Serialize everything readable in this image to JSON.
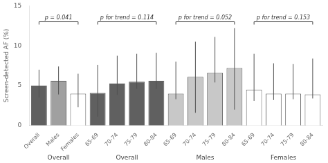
{
  "chart_data": {
    "type": "bar",
    "categories": [
      "Overall",
      "Males",
      "Females",
      "65-69",
      "70-74",
      "75-79",
      "80-84",
      "65-69",
      "70-74",
      "75-79",
      "80-84",
      "65-69",
      "70-74",
      "75-79",
      "80-84"
    ],
    "values": [
      5.0,
      5.6,
      4.0,
      4.1,
      5.25,
      5.5,
      5.6,
      4.0,
      6.1,
      6.6,
      7.2,
      4.5,
      4.0,
      4.0,
      3.9
    ],
    "errors_low": [
      1.5,
      1.7,
      1.7,
      3.0,
      1.4,
      0.9,
      1.0,
      0.7,
      4.5,
      1.2,
      5.2,
      1.4,
      0.8,
      0.7,
      0.5
    ],
    "errors_high": [
      2.0,
      1.8,
      2.5,
      3.5,
      3.5,
      3.5,
      3.5,
      4.0,
      4.4,
      4.5,
      5.0,
      4.5,
      3.8,
      3.7,
      4.5
    ],
    "colors": [
      "#606060",
      "#a0a0a0",
      "#ffffff",
      "#606060",
      "#606060",
      "#606060",
      "#606060",
      "#c8c8c8",
      "#c8c8c8",
      "#c8c8c8",
      "#c8c8c8",
      "#ffffff",
      "#ffffff",
      "#ffffff",
      "#ffffff"
    ],
    "groups": [
      {
        "label": "Overall",
        "range": [
          0,
          2
        ]
      },
      {
        "label": "Overall",
        "range": [
          3,
          6
        ]
      },
      {
        "label": "Males",
        "range": [
          7,
          10
        ]
      },
      {
        "label": "Females",
        "range": [
          11,
          14
        ]
      }
    ],
    "ylabel": "Screen-detected AF (%)",
    "ylim": [
      0,
      15
    ],
    "yticks": [
      0,
      5,
      10,
      15
    ],
    "annotations": [
      {
        "text": "p = 0.041",
        "range": [
          0,
          2
        ],
        "y": 13.0
      },
      {
        "text": "p for trend = 0.114",
        "range": [
          3,
          6
        ],
        "y": 13.0
      },
      {
        "text": "p for trend = 0.052",
        "range": [
          7,
          10
        ],
        "y": 13.0
      },
      {
        "text": "p for trend = 0.153",
        "range": [
          11,
          14
        ],
        "y": 13.0
      }
    ],
    "grid": false
  }
}
